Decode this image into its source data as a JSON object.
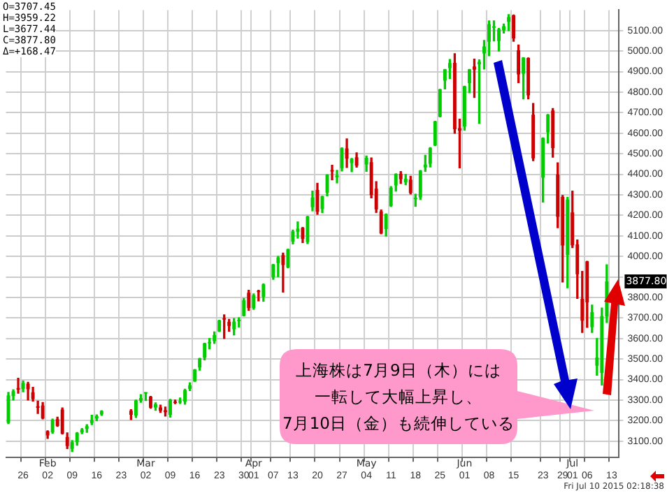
{
  "chart_data": {
    "type": "candlestick",
    "categories": [
      null,
      null,
      null,
      "26",
      null,
      null,
      null,
      null,
      "02",
      null,
      null,
      null,
      null,
      "09",
      null,
      null,
      null,
      null,
      "16",
      null,
      null,
      null,
      null,
      "23",
      null,
      null,
      null,
      null,
      "02",
      null,
      null,
      null,
      null,
      "09",
      null,
      null,
      null,
      null,
      "16",
      null,
      null,
      null,
      null,
      "23",
      null,
      null,
      null,
      null,
      "30",
      null,
      "01",
      null,
      null,
      null,
      "07",
      null,
      null,
      null,
      "13",
      null,
      null,
      null,
      null,
      "20",
      null,
      null,
      null,
      null,
      "27",
      null,
      null,
      null,
      null,
      "04",
      null,
      null,
      null,
      null,
      "11",
      null,
      null,
      null,
      null,
      "18",
      null,
      null,
      null,
      null,
      "25",
      null,
      null,
      null,
      null,
      "01",
      null,
      null,
      null,
      null,
      "08",
      null,
      null,
      null,
      null,
      "15",
      null,
      null,
      null,
      null,
      null,
      "23",
      null,
      null,
      null,
      "29",
      null,
      "01",
      null,
      null,
      "06",
      null,
      null,
      null,
      null,
      "13",
      null
    ],
    "ohlc": [
      [
        3189,
        3337,
        3185,
        3323
      ],
      [
        3320,
        3350,
        3300,
        3343
      ],
      [
        3358,
        3406,
        3333,
        3351
      ],
      [
        3354,
        3393,
        3340,
        3383
      ],
      [
        3380,
        3387,
        3300,
        3352
      ],
      [
        3338,
        3362,
        3295,
        3305
      ],
      [
        3270,
        3295,
        3235,
        3262
      ],
      [
        3273,
        3288,
        3208,
        3210
      ],
      [
        3148,
        3150,
        3113,
        3128
      ],
      [
        3143,
        3207,
        3139,
        3204
      ],
      [
        3207,
        3217,
        3172,
        3174
      ],
      [
        3254,
        3262,
        3134,
        3136
      ],
      [
        3120,
        3140,
        3064,
        3076
      ],
      [
        3062,
        3103,
        3049,
        3095
      ],
      [
        3095,
        3142,
        3080,
        3141
      ],
      [
        3142,
        3161,
        3136,
        3157
      ],
      [
        3159,
        3180,
        3143,
        3173
      ],
      [
        3188,
        3226,
        3180,
        3203
      ],
      [
        3210,
        3228,
        3200,
        3222
      ],
      [
        3230,
        3248,
        3225,
        3247
      ],
      null,
      null,
      null,
      null,
      null,
      [
        3248,
        3253,
        3205,
        3228
      ],
      [
        3225,
        3300,
        3215,
        3298
      ],
      [
        3297,
        3326,
        3289,
        3310
      ],
      [
        3332,
        3336,
        3298,
        3336
      ],
      [
        3317,
        3318,
        3260,
        3263
      ],
      [
        3264,
        3286,
        3250,
        3280
      ],
      [
        3264,
        3275,
        3240,
        3248
      ],
      [
        3250,
        3266,
        3222,
        3241
      ],
      [
        3228,
        3303,
        3217,
        3302
      ],
      [
        3293,
        3300,
        3282,
        3286
      ],
      [
        3288,
        3310,
        3283,
        3291
      ],
      [
        3292,
        3353,
        3280,
        3349
      ],
      [
        3354,
        3384,
        3346,
        3372
      ],
      [
        3391,
        3449,
        3391,
        3449
      ],
      [
        3459,
        3503,
        3446,
        3503
      ],
      [
        3506,
        3577,
        3496,
        3577
      ],
      [
        3576,
        3600,
        3549,
        3583
      ],
      [
        3587,
        3632,
        3576,
        3617
      ],
      [
        3634,
        3689,
        3634,
        3688
      ],
      [
        3696,
        3715,
        3600,
        3692
      ],
      [
        3681,
        3693,
        3635,
        3661
      ],
      [
        3645,
        3697,
        3617,
        3682
      ],
      [
        3684,
        3701,
        3656,
        3691
      ],
      [
        3710,
        3795,
        3710,
        3786
      ],
      [
        3823,
        3835,
        3737,
        3748
      ],
      [
        3748,
        3817,
        3742,
        3811
      ],
      [
        3827,
        3835,
        3783,
        3826
      ],
      [
        3803,
        3866,
        3781,
        3864
      ],
      null,
      [
        3899,
        3961,
        3888,
        3961
      ],
      [
        3967,
        4000,
        3901,
        3995
      ],
      [
        4006,
        4016,
        3826,
        3958
      ],
      [
        3946,
        4035,
        3944,
        4035
      ],
      [
        4072,
        4128,
        4061,
        4122
      ],
      [
        4120,
        4168,
        4089,
        4135
      ],
      [
        4139,
        4141,
        4067,
        4085
      ],
      [
        4070,
        4195,
        4062,
        4195
      ],
      [
        4240,
        4318,
        4222,
        4287
      ],
      [
        4324,
        4356,
        4205,
        4217
      ],
      [
        4231,
        4293,
        4213,
        4293
      ],
      [
        4310,
        4398,
        4295,
        4398
      ],
      [
        4415,
        4444,
        4373,
        4414
      ],
      [
        4385,
        4419,
        4358,
        4394
      ],
      [
        4430,
        4529,
        4416,
        4527
      ],
      [
        4526,
        4572,
        4433,
        4476
      ],
      [
        4455,
        4477,
        4413,
        4476
      ],
      [
        4483,
        4504,
        4435,
        4442
      ],
      null,
      [
        4448,
        4489,
        4414,
        4480
      ],
      [
        4459,
        4480,
        4285,
        4299
      ],
      [
        4330,
        4364,
        4214,
        4229
      ],
      [
        4219,
        4226,
        4110,
        4112
      ],
      [
        4133,
        4207,
        4099,
        4206
      ],
      [
        4245,
        4340,
        4243,
        4334
      ],
      [
        4346,
        4402,
        4318,
        4402
      ],
      [
        4402,
        4413,
        4355,
        4376
      ],
      [
        4361,
        4400,
        4349,
        4378
      ],
      [
        4374,
        4390,
        4304,
        4309
      ],
      [
        4279,
        4303,
        4244,
        4284
      ],
      [
        4287,
        4418,
        4277,
        4418
      ],
      [
        4433,
        4492,
        4414,
        4447
      ],
      [
        4451,
        4530,
        4436,
        4529
      ],
      [
        4540,
        4658,
        4540,
        4658
      ],
      [
        4680,
        4814,
        4680,
        4814
      ],
      [
        4856,
        4911,
        4816,
        4911
      ],
      [
        4917,
        4959,
        4867,
        4942
      ],
      [
        4943,
        4987,
        4600,
        4620
      ],
      [
        4625,
        4668,
        4431,
        4612
      ],
      [
        4633,
        4829,
        4615,
        4829
      ],
      [
        4844,
        4911,
        4797,
        4911
      ],
      [
        4925,
        4961,
        4774,
        4910
      ],
      [
        4935,
        4958,
        4647,
        4948
      ],
      [
        4989,
        5052,
        4913,
        5023
      ],
      [
        5046,
        5147,
        4977,
        5132
      ],
      [
        5114,
        5147,
        5050,
        5114
      ],
      [
        5049,
        5111,
        5000,
        5106
      ],
      [
        5102,
        5132,
        5088,
        5121
      ],
      [
        5143,
        5178,
        5100,
        5166
      ],
      [
        5174,
        5176,
        5048,
        5062
      ],
      [
        5004,
        5030,
        4846,
        4887
      ],
      [
        4890,
        4968,
        4767,
        4968
      ],
      [
        4967,
        4967,
        4767,
        4785
      ],
      [
        4690,
        4745,
        4466,
        4478
      ],
      null,
      [
        4384,
        4577,
        4265,
        4577
      ],
      [
        4604,
        4691,
        4552,
        4691
      ],
      [
        4711,
        4720,
        4483,
        4528
      ],
      [
        4399,
        4456,
        4140,
        4193
      ],
      [
        4290,
        4297,
        3875,
        4053
      ],
      [
        4007,
        4287,
        3847,
        4277
      ],
      [
        4214,
        4318,
        4043,
        4054
      ],
      [
        4058,
        4080,
        3795,
        3913
      ],
      [
        3793,
        3927,
        3629,
        3687
      ],
      [
        3976,
        3976,
        3654,
        3776
      ],
      [
        3655,
        3763,
        3629,
        3728
      ],
      [
        3467,
        3600,
        3421,
        3507
      ],
      [
        3432,
        3748,
        3373,
        3709
      ],
      [
        3707.45,
        3959.22,
        3677.44,
        3877.8
      ],
      null,
      null
    ],
    "ylim": [
      3020,
      5200
    ],
    "yticks": [
      {
        "value": 3100,
        "label": "3100.00"
      },
      {
        "value": 3200,
        "label": "3200.00"
      },
      {
        "value": 3300,
        "label": "3300.00"
      },
      {
        "value": 3400,
        "label": "3400.00"
      },
      {
        "value": 3500,
        "label": "3500.00"
      },
      {
        "value": 3600,
        "label": "3600.00"
      },
      {
        "value": 3700,
        "label": "3700.00"
      },
      {
        "value": 3800,
        "label": "3800.00"
      },
      {
        "value": 3900,
        "label": null
      },
      {
        "value": 4000,
        "label": "4000.00"
      },
      {
        "value": 4100,
        "label": "4100.00"
      },
      {
        "value": 4200,
        "label": "4200.00"
      },
      {
        "value": 4300,
        "label": "4300.00"
      },
      {
        "value": 4400,
        "label": "4400.00"
      },
      {
        "value": 4500,
        "label": "4500.00"
      },
      {
        "value": 4600,
        "label": "4600.00"
      },
      {
        "value": 4700,
        "label": "4700.00"
      },
      {
        "value": 4800,
        "label": "4800.00"
      },
      {
        "value": 4900,
        "label": "4900.00"
      },
      {
        "value": 5000,
        "label": "5000.00"
      },
      {
        "value": 5100,
        "label": "5100.00"
      }
    ],
    "grid": true,
    "annotations": [
      "O=3707.45\nH=3959.22\nL=3677.44\nC=3877.80\nΔ=+168.47",
      "上海株は7月9日（木）には",
      "一転して大幅上昇し、",
      "7月10日（金）も続伸している",
      "Fri Jul 10 2015 02:18:38",
      "Feb",
      "Mar",
      "Apr",
      "May",
      "Jun",
      "Jul",
      "3877.80"
    ]
  }
}
